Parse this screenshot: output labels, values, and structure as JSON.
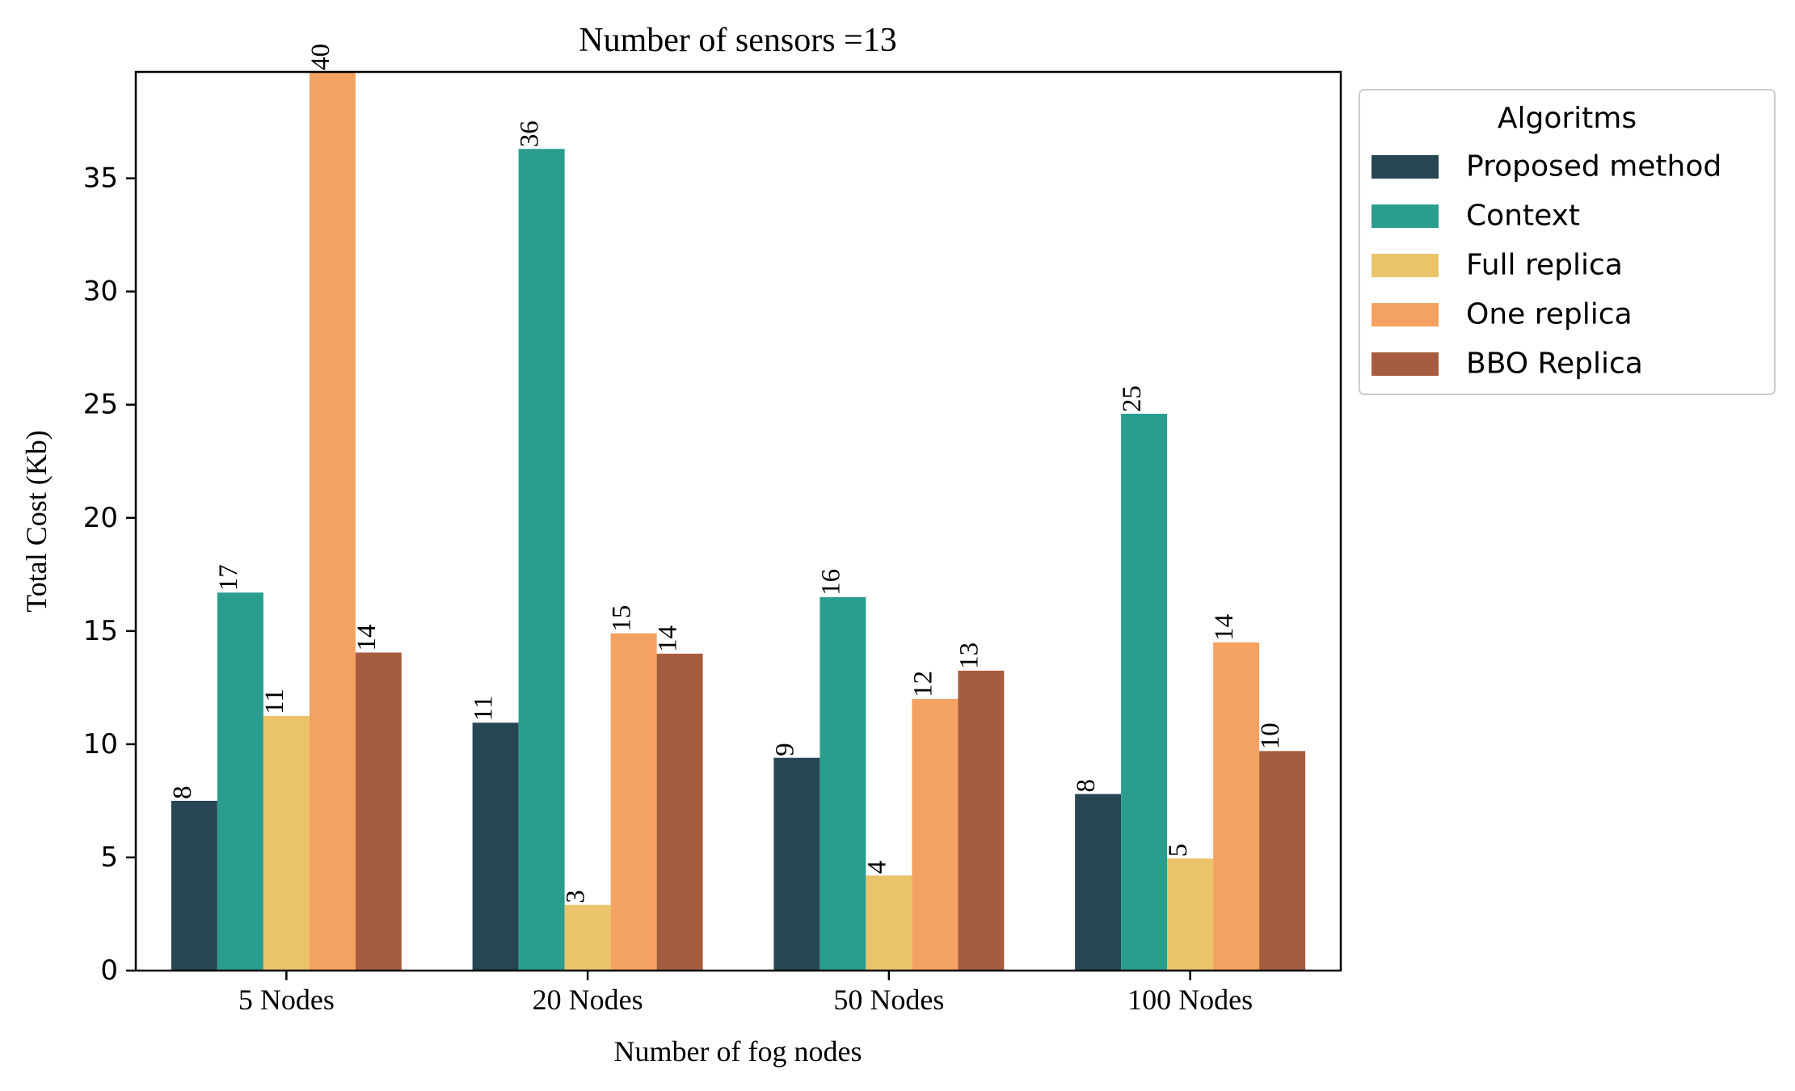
{
  "chart_data": {
    "type": "bar",
    "title": "Number of sensors =13",
    "xlabel": "Number of fog nodes",
    "ylabel": "Total Cost (Kb)",
    "categories": [
      "5 Nodes",
      "20 Nodes",
      "50 Nodes",
      "100 Nodes"
    ],
    "ylim": [
      0,
      39.7
    ],
    "yticks": [
      0,
      5,
      10,
      15,
      20,
      25,
      30,
      35
    ],
    "grid": false,
    "legend": {
      "title": "Algoritms",
      "placement": "outside-top-right"
    },
    "series": [
      {
        "name": "Proposed method",
        "color": "#264653",
        "values": [
          7.5,
          10.95,
          9.4,
          7.8
        ],
        "labels": [
          "8",
          "11",
          "9",
          "8"
        ]
      },
      {
        "name": "Context",
        "color": "#2a9d8f",
        "values": [
          16.7,
          36.3,
          16.5,
          24.6
        ],
        "labels": [
          "17",
          "36",
          "16",
          "25"
        ]
      },
      {
        "name": "Full replica",
        "color": "#e9c46a",
        "values": [
          11.25,
          2.9,
          4.2,
          4.95
        ],
        "labels": [
          "11",
          "3",
          "4",
          "5"
        ]
      },
      {
        "name": "One replica",
        "color": "#f4a261",
        "values": [
          39.7,
          14.9,
          12.0,
          14.5
        ],
        "labels": [
          "40",
          "15",
          "12",
          "14"
        ]
      },
      {
        "name": "BBO Replica",
        "color": "#a65d3f",
        "values": [
          14.05,
          14.0,
          13.25,
          9.7
        ],
        "labels": [
          "14",
          "14",
          "13",
          "10"
        ]
      }
    ]
  }
}
